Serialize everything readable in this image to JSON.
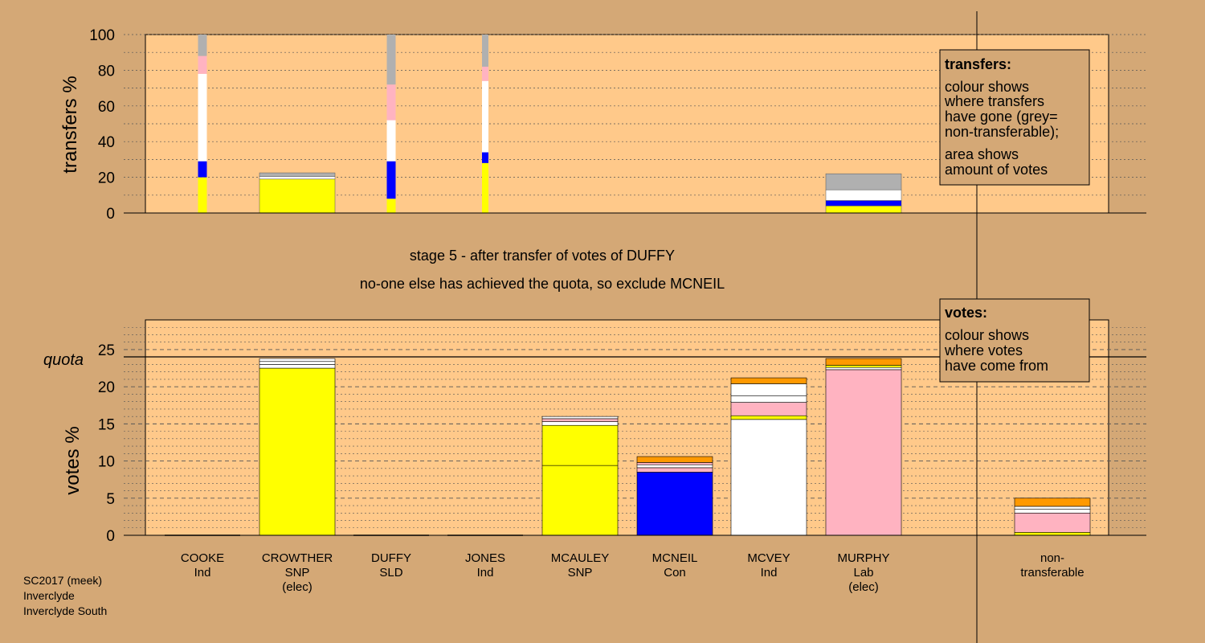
{
  "colors": {
    "background": "#d4a876",
    "plot_bg": "#ffc98a",
    "yellow": "#ffff00",
    "blue": "#0000ff",
    "white": "#ffffff",
    "pink": "#ffb3c1",
    "grey": "#b0b0b0",
    "orange": "#ff9900"
  },
  "candidates": [
    {
      "name": "COOKE",
      "party": "Ind",
      "note": ""
    },
    {
      "name": "CROWTHER",
      "party": "SNP",
      "note": "(elec)"
    },
    {
      "name": "DUFFY",
      "party": "SLD",
      "note": ""
    },
    {
      "name": "JONES",
      "party": "Ind",
      "note": ""
    },
    {
      "name": "MCAULEY",
      "party": "SNP",
      "note": ""
    },
    {
      "name": "MCNEIL",
      "party": "Con",
      "note": ""
    },
    {
      "name": "MCVEY",
      "party": "Ind",
      "note": ""
    },
    {
      "name": "MURPHY",
      "party": "Lab",
      "note": "(elec)"
    },
    {
      "name": "non-",
      "party": "transferable",
      "note": ""
    }
  ],
  "stage_text": {
    "line1": "stage 5 - after transfer of votes of DUFFY",
    "line2": "no-one else has achieved the quota, so exclude MCNEIL"
  },
  "footer": {
    "line1": "SC2017 (meek)",
    "line2": "Inverclyde",
    "line3": "Inverclyde South"
  },
  "legend_transfers": {
    "title": "transfers:",
    "p1": [
      "colour shows",
      "where transfers",
      "have gone (grey=",
      "non-transferable);"
    ],
    "p2": [
      "area shows",
      "amount of votes"
    ]
  },
  "legend_votes": {
    "title": "votes:",
    "p1": [
      "colour shows",
      "where votes",
      "have come from"
    ]
  },
  "chart_data": [
    {
      "type": "bar",
      "ylabel": "transfers %",
      "ylim": [
        0,
        100
      ],
      "yticks": [
        0,
        20,
        40,
        60,
        80,
        100
      ],
      "bars": [
        {
          "candidate": "COOKE",
          "width": "narrow",
          "segments": [
            {
              "color": "yellow",
              "from": 0,
              "to": 20
            },
            {
              "color": "blue",
              "from": 20,
              "to": 29
            },
            {
              "color": "white",
              "from": 29,
              "to": 78
            },
            {
              "color": "pink",
              "from": 78,
              "to": 88
            },
            {
              "color": "grey",
              "from": 88,
              "to": 100
            }
          ]
        },
        {
          "candidate": "CROWTHER",
          "width": "full",
          "segments": [
            {
              "color": "yellow",
              "from": 0,
              "to": 19
            },
            {
              "color": "white",
              "from": 19,
              "to": 20.5
            },
            {
              "color": "grey",
              "from": 20.5,
              "to": 22.5
            }
          ]
        },
        {
          "candidate": "DUFFY",
          "width": "narrow",
          "segments": [
            {
              "color": "yellow",
              "from": 0,
              "to": 8
            },
            {
              "color": "blue",
              "from": 8,
              "to": 29
            },
            {
              "color": "white",
              "from": 29,
              "to": 52
            },
            {
              "color": "pink",
              "from": 52,
              "to": 72
            },
            {
              "color": "grey",
              "from": 72,
              "to": 100
            }
          ]
        },
        {
          "candidate": "JONES",
          "width": "thin",
          "segments": [
            {
              "color": "yellow",
              "from": 0,
              "to": 28
            },
            {
              "color": "blue",
              "from": 28,
              "to": 34
            },
            {
              "color": "white",
              "from": 34,
              "to": 74
            },
            {
              "color": "pink",
              "from": 74,
              "to": 82
            },
            {
              "color": "grey",
              "from": 82,
              "to": 100
            }
          ]
        },
        {
          "candidate": "MURPHY",
          "width": "full",
          "segments": [
            {
              "color": "yellow",
              "from": 0,
              "to": 4
            },
            {
              "color": "blue",
              "from": 4,
              "to": 7
            },
            {
              "color": "white",
              "from": 7,
              "to": 13
            },
            {
              "color": "grey",
              "from": 13,
              "to": 22
            }
          ]
        }
      ]
    },
    {
      "type": "bar",
      "ylabel": "votes %",
      "ylim": [
        0,
        29
      ],
      "yticks": [
        0,
        5,
        10,
        15,
        20,
        25
      ],
      "quota": 23.8,
      "quota_label": "quota",
      "bars": [
        {
          "candidate": "COOKE",
          "segments": []
        },
        {
          "candidate": "CROWTHER",
          "segments": [
            {
              "color": "yellow",
              "from": 0,
              "to": 22.5
            },
            {
              "color": "white",
              "from": 22.5,
              "to": 23
            },
            {
              "color": "white",
              "from": 23,
              "to": 23.4
            },
            {
              "color": "white",
              "from": 23.4,
              "to": 23.8
            }
          ]
        },
        {
          "candidate": "DUFFY",
          "segments": []
        },
        {
          "candidate": "JONES",
          "segments": []
        },
        {
          "candidate": "MCAULEY",
          "segments": [
            {
              "color": "yellow",
              "from": 0,
              "to": 9.4
            },
            {
              "color": "yellow",
              "from": 9.4,
              "to": 14.8
            },
            {
              "color": "white",
              "from": 14.8,
              "to": 15.3
            },
            {
              "color": "pink",
              "from": 15.3,
              "to": 15.7
            },
            {
              "color": "white",
              "from": 15.7,
              "to": 16
            }
          ]
        },
        {
          "candidate": "MCNEIL",
          "segments": [
            {
              "color": "blue",
              "from": 0,
              "to": 8.5
            },
            {
              "color": "pink",
              "from": 8.5,
              "to": 9.1
            },
            {
              "color": "white",
              "from": 9.1,
              "to": 9.5
            },
            {
              "color": "pink",
              "from": 9.5,
              "to": 9.8
            },
            {
              "color": "orange",
              "from": 9.8,
              "to": 10.6
            }
          ]
        },
        {
          "candidate": "MCVEY",
          "segments": [
            {
              "color": "white",
              "from": 0,
              "to": 15.6
            },
            {
              "color": "yellow",
              "from": 15.6,
              "to": 16.1
            },
            {
              "color": "pink",
              "from": 16.1,
              "to": 17.9
            },
            {
              "color": "white",
              "from": 17.9,
              "to": 18.8
            },
            {
              "color": "white",
              "from": 18.8,
              "to": 20.4
            },
            {
              "color": "orange",
              "from": 20.4,
              "to": 21.2
            }
          ]
        },
        {
          "candidate": "MURPHY",
          "segments": [
            {
              "color": "pink",
              "from": 0,
              "to": 22.3
            },
            {
              "color": "white",
              "from": 22.3,
              "to": 22.6
            },
            {
              "color": "yellow",
              "from": 22.6,
              "to": 22.9
            },
            {
              "color": "orange",
              "from": 22.9,
              "to": 23.8
            }
          ]
        },
        {
          "candidate": "non-transferable",
          "segments": [
            {
              "color": "yellow",
              "from": 0,
              "to": 0.4
            },
            {
              "color": "pink",
              "from": 0.4,
              "to": 3
            },
            {
              "color": "white",
              "from": 3,
              "to": 3.5
            },
            {
              "color": "white",
              "from": 3.5,
              "to": 3.9
            },
            {
              "color": "orange",
              "from": 3.9,
              "to": 5
            }
          ]
        }
      ]
    }
  ]
}
